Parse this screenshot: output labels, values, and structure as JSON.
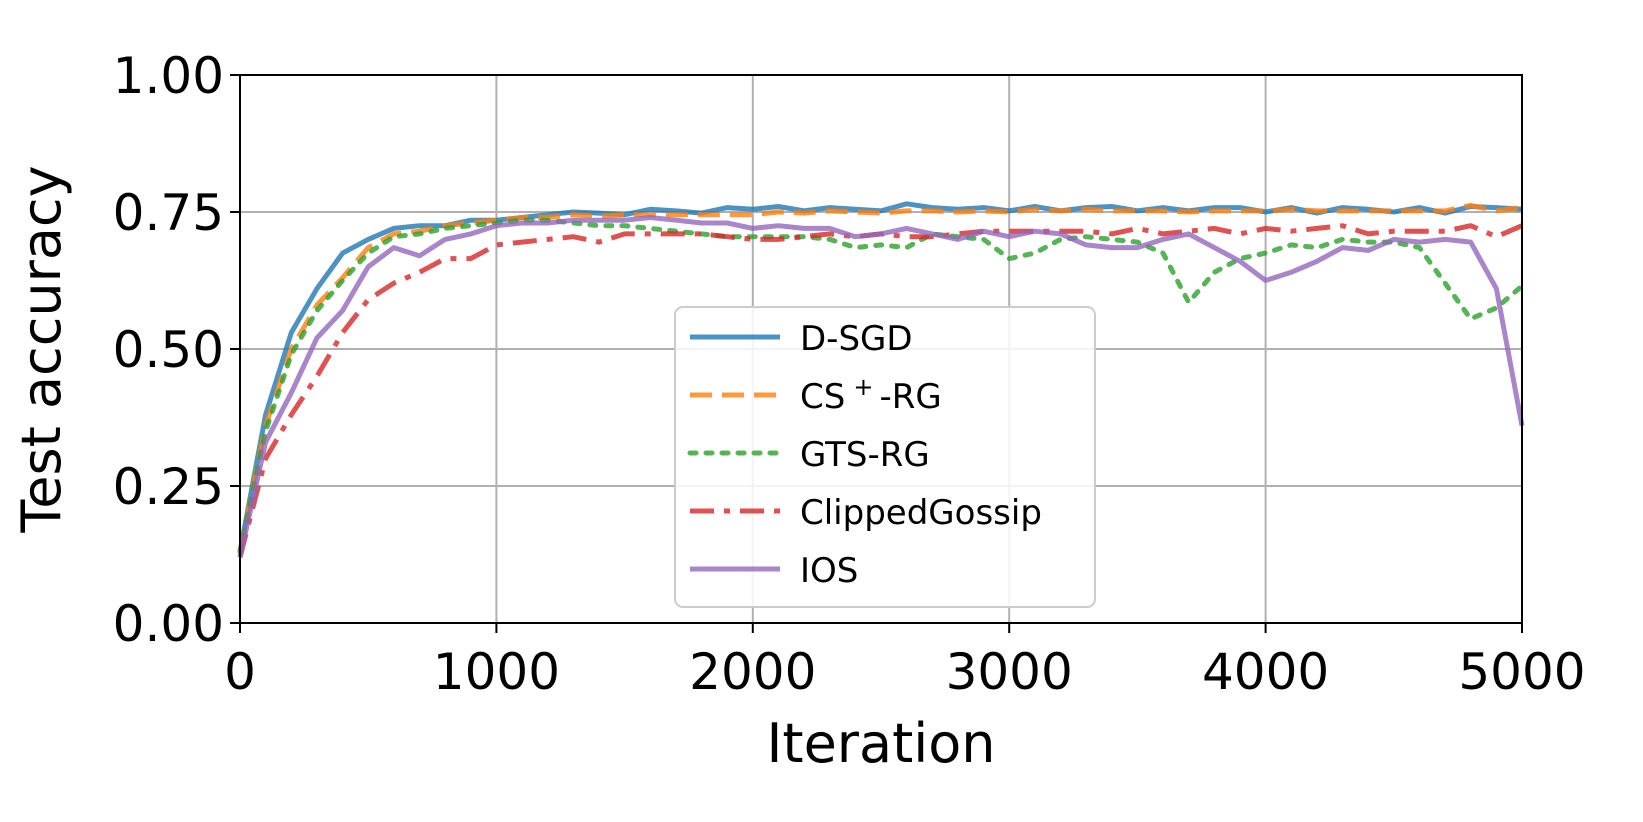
{
  "chart_data": {
    "type": "line",
    "title": "",
    "xlabel": "Iteration",
    "ylabel": "Test accuracy",
    "xlim": [
      0,
      5000
    ],
    "ylim": [
      0,
      1.0
    ],
    "xticks": [
      0,
      1000,
      2000,
      3000,
      4000,
      5000
    ],
    "yticks": [
      0.0,
      0.25,
      0.5,
      0.75,
      1.0
    ],
    "xtick_labels": [
      "0",
      "1000",
      "2000",
      "3000",
      "4000",
      "5000"
    ],
    "ytick_labels": [
      "0.00",
      "0.25",
      "0.50",
      "0.75",
      "1.00"
    ],
    "grid": true,
    "legend_position": "center",
    "x": [
      0,
      100,
      200,
      300,
      400,
      500,
      600,
      700,
      800,
      900,
      1000,
      1100,
      1200,
      1300,
      1400,
      1500,
      1600,
      1700,
      1800,
      1900,
      2000,
      2100,
      2200,
      2300,
      2400,
      2500,
      2600,
      2700,
      2800,
      2900,
      3000,
      3100,
      3200,
      3300,
      3400,
      3500,
      3600,
      3700,
      3800,
      3900,
      4000,
      4100,
      4200,
      4300,
      4400,
      4500,
      4600,
      4700,
      4800,
      4900,
      5000
    ],
    "series": [
      {
        "name": "D-SGD",
        "legend_main": "D-SGD",
        "legend_sup": "",
        "legend_rest": "",
        "color": "#1f77b4",
        "dash": "solid",
        "values": [
          0.13,
          0.38,
          0.53,
          0.61,
          0.675,
          0.7,
          0.72,
          0.725,
          0.725,
          0.735,
          0.735,
          0.74,
          0.745,
          0.75,
          0.748,
          0.745,
          0.755,
          0.752,
          0.748,
          0.758,
          0.755,
          0.76,
          0.752,
          0.758,
          0.755,
          0.752,
          0.765,
          0.758,
          0.755,
          0.758,
          0.752,
          0.76,
          0.752,
          0.758,
          0.76,
          0.752,
          0.758,
          0.752,
          0.758,
          0.758,
          0.75,
          0.758,
          0.748,
          0.758,
          0.755,
          0.75,
          0.758,
          0.748,
          0.76,
          0.758,
          0.755
        ]
      },
      {
        "name": "CS+-RG",
        "legend_main": "CS",
        "legend_sup": "+",
        "legend_rest": "-RG",
        "color": "#ff7f0e",
        "dash": "dashed",
        "values": [
          0.13,
          0.36,
          0.5,
          0.58,
          0.63,
          0.685,
          0.71,
          0.715,
          0.725,
          0.73,
          0.735,
          0.74,
          0.74,
          0.745,
          0.742,
          0.745,
          0.745,
          0.745,
          0.745,
          0.745,
          0.745,
          0.75,
          0.748,
          0.752,
          0.75,
          0.748,
          0.752,
          0.752,
          0.75,
          0.752,
          0.75,
          0.755,
          0.752,
          0.755,
          0.752,
          0.752,
          0.752,
          0.75,
          0.752,
          0.752,
          0.752,
          0.755,
          0.752,
          0.752,
          0.752,
          0.752,
          0.752,
          0.752,
          0.762,
          0.752,
          0.758
        ]
      },
      {
        "name": "GTS-RG",
        "legend_main": "GTS-RG",
        "legend_sup": "",
        "legend_rest": "",
        "color": "#2ca02c",
        "dash": "dotted",
        "values": [
          0.13,
          0.35,
          0.49,
          0.57,
          0.625,
          0.675,
          0.705,
          0.71,
          0.72,
          0.725,
          0.73,
          0.735,
          0.735,
          0.73,
          0.725,
          0.725,
          0.72,
          0.715,
          0.71,
          0.705,
          0.705,
          0.705,
          0.705,
          0.7,
          0.685,
          0.69,
          0.685,
          0.71,
          0.705,
          0.7,
          0.665,
          0.675,
          0.7,
          0.705,
          0.7,
          0.695,
          0.675,
          0.585,
          0.64,
          0.665,
          0.675,
          0.69,
          0.685,
          0.7,
          0.695,
          0.695,
          0.685,
          0.62,
          0.555,
          0.575,
          0.615
        ]
      },
      {
        "name": "ClippedGossip",
        "legend_main": "ClippedGossip",
        "legend_sup": "",
        "legend_rest": "",
        "color": "#d62728",
        "dash": "dashdot",
        "values": [
          0.12,
          0.3,
          0.38,
          0.45,
          0.53,
          0.59,
          0.62,
          0.64,
          0.665,
          0.665,
          0.69,
          0.695,
          0.7,
          0.705,
          0.695,
          0.71,
          0.71,
          0.71,
          0.71,
          0.705,
          0.7,
          0.7,
          0.705,
          0.71,
          0.705,
          0.71,
          0.705,
          0.705,
          0.71,
          0.715,
          0.715,
          0.715,
          0.715,
          0.715,
          0.71,
          0.72,
          0.71,
          0.715,
          0.72,
          0.71,
          0.72,
          0.715,
          0.72,
          0.725,
          0.71,
          0.715,
          0.715,
          0.715,
          0.725,
          0.705,
          0.725
        ]
      },
      {
        "name": "IOS",
        "legend_main": "IOS",
        "legend_sup": "",
        "legend_rest": "",
        "color": "#9467bd",
        "dash": "solid",
        "values": [
          0.12,
          0.33,
          0.42,
          0.52,
          0.57,
          0.65,
          0.685,
          0.67,
          0.7,
          0.71,
          0.725,
          0.73,
          0.73,
          0.735,
          0.735,
          0.735,
          0.74,
          0.735,
          0.73,
          0.73,
          0.72,
          0.725,
          0.72,
          0.72,
          0.705,
          0.71,
          0.72,
          0.71,
          0.7,
          0.715,
          0.705,
          0.715,
          0.71,
          0.69,
          0.685,
          0.685,
          0.7,
          0.71,
          0.685,
          0.66,
          0.625,
          0.64,
          0.66,
          0.685,
          0.68,
          0.7,
          0.695,
          0.7,
          0.695,
          0.61,
          0.36
        ]
      }
    ]
  }
}
